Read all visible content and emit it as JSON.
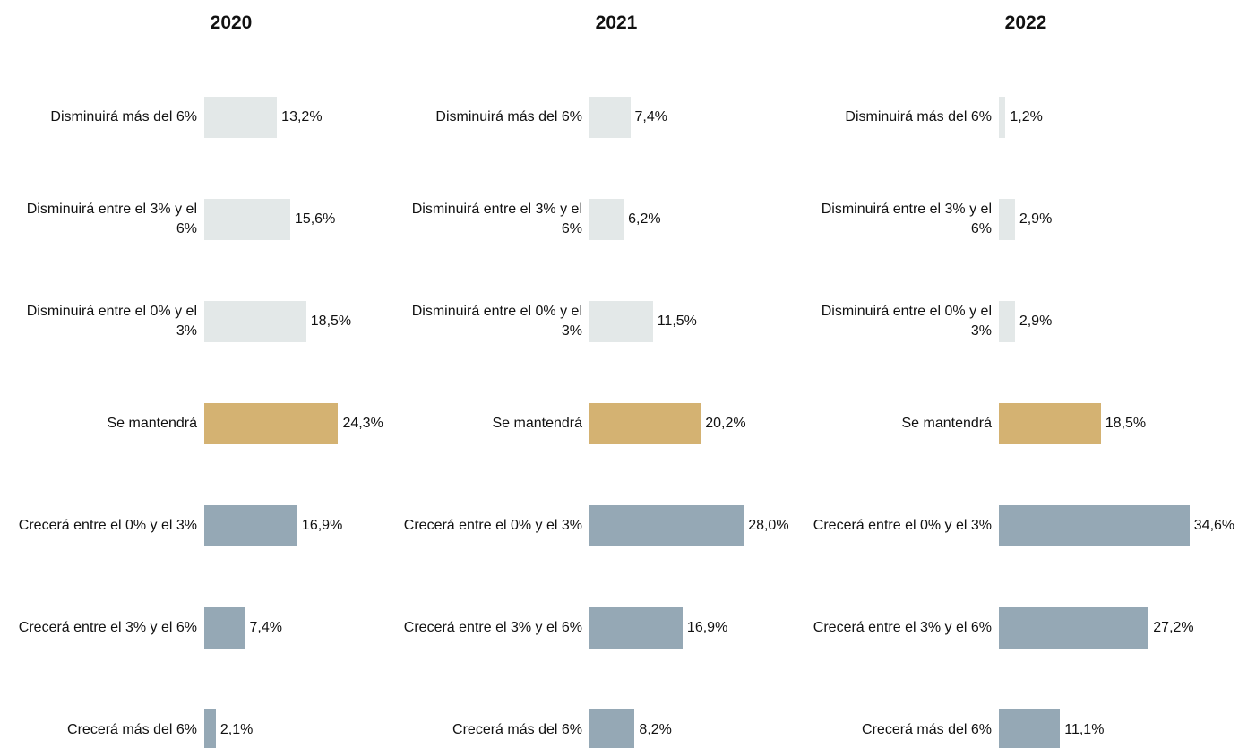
{
  "chart_data": [
    {
      "type": "bar",
      "orientation": "horizontal",
      "title": "2020",
      "categories": [
        "Disminuirá más del 6%",
        "Disminuirá entre el 3% y el 6%",
        "Disminuirá entre el 0% y el 3%",
        "Se mantendrá",
        "Crecerá entre el 0% y el 3%",
        "Crecerá entre el 3% y el 6%",
        "Crecerá más del 6%"
      ],
      "values": [
        13.2,
        15.6,
        18.5,
        24.3,
        16.9,
        7.4,
        2.1
      ],
      "value_labels": [
        "13,2%",
        "15,6%",
        "18,5%",
        "24,3%",
        "16,9%",
        "7,4%",
        "2,1%"
      ],
      "colors": [
        "#e3e8e8",
        "#e3e8e8",
        "#e3e8e8",
        "#d4b272",
        "#95a8b5",
        "#95a8b5",
        "#95a8b5"
      ]
    },
    {
      "type": "bar",
      "orientation": "horizontal",
      "title": "2021",
      "categories": [
        "Disminuirá más del 6%",
        "Disminuirá entre el 3% y el 6%",
        "Disminuirá entre el 0% y el 3%",
        "Se mantendrá",
        "Crecerá entre el 0% y el 3%",
        "Crecerá entre el 3% y el 6%",
        "Crecerá más del 6%"
      ],
      "values": [
        7.4,
        6.2,
        11.5,
        20.2,
        28.0,
        16.9,
        8.2
      ],
      "value_labels": [
        "7,4%",
        "6,2%",
        "11,5%",
        "20,2%",
        "28,0%",
        "16,9%",
        "8,2%"
      ],
      "colors": [
        "#e3e8e8",
        "#e3e8e8",
        "#e3e8e8",
        "#d4b272",
        "#95a8b5",
        "#95a8b5",
        "#95a8b5"
      ]
    },
    {
      "type": "bar",
      "orientation": "horizontal",
      "title": "2022",
      "categories": [
        "Disminuirá más del 6%",
        "Disminuirá entre el 3% y el 6%",
        "Disminuirá entre el 0% y el 3%",
        "Se mantendrá",
        "Crecerá entre el 0% y el 3%",
        "Crecerá entre el 3% y el 6%",
        "Crecerá más del 6%"
      ],
      "values": [
        1.2,
        2.9,
        2.9,
        18.5,
        34.6,
        27.2,
        11.1
      ],
      "value_labels": [
        "1,2%",
        "2,9%",
        "2,9%",
        "18,5%",
        "34,6%",
        "27,2%",
        "11,1%"
      ],
      "colors": [
        "#e3e8e8",
        "#e3e8e8",
        "#e3e8e8",
        "#d4b272",
        "#95a8b5",
        "#95a8b5",
        "#95a8b5"
      ]
    }
  ]
}
